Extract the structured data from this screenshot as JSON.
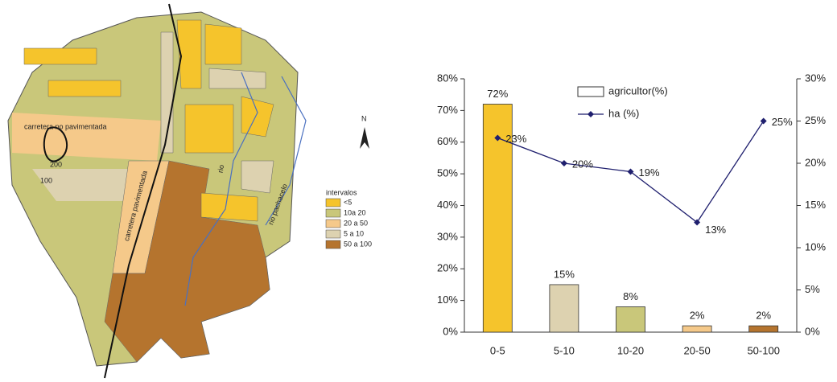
{
  "map": {
    "north": "N",
    "legend_title": "intervalos",
    "legend": [
      {
        "label": "<5",
        "color": "#f5c42c"
      },
      {
        "label": "10a 20",
        "color": "#c9c77a"
      },
      {
        "label": "20 a 50",
        "color": "#f5c98a"
      },
      {
        "label": "5 a 10",
        "color": "#ddd2b0"
      },
      {
        "label": "50 a 100",
        "color": "#b5742e"
      }
    ],
    "labels": [
      "carretera no pavimentada",
      "carretera pavimentada",
      "200",
      "100",
      "rio",
      "rio pachacelo"
    ]
  },
  "chart_data": {
    "type": "bar",
    "categories": [
      "0-5",
      "5-10",
      "10-20",
      "20-50",
      "50-100"
    ],
    "series": [
      {
        "name": "agricultor(%)",
        "values": [
          72,
          15,
          8,
          2,
          2
        ],
        "value_labels": [
          "72%",
          "15%",
          "8%",
          "2%",
          "2%"
        ],
        "colors": [
          "#f5c42c",
          "#ddd2b0",
          "#c9c77a",
          "#f5c98a",
          "#b5742e"
        ]
      },
      {
        "name": "ha (%)",
        "axis": "y2",
        "color": "#1f1f6e",
        "values": [
          23,
          20,
          19,
          13,
          25
        ],
        "value_labels": [
          "23%",
          "20%",
          "19%",
          "13%",
          "25%"
        ]
      }
    ],
    "ylim": [
      0,
      80
    ],
    "yticks": [
      {
        "value": 0,
        "label": "0%"
      },
      {
        "value": 10,
        "label": "10%"
      },
      {
        "value": 20,
        "label": "20%"
      },
      {
        "value": 30,
        "label": "30%"
      },
      {
        "value": 40,
        "label": "40%"
      },
      {
        "value": 50,
        "label": "50%"
      },
      {
        "value": 60,
        "label": "60%"
      },
      {
        "value": 70,
        "label": "70%"
      },
      {
        "value": 80,
        "label": "80%"
      }
    ],
    "y2lim": [
      0,
      30
    ],
    "y2ticks": [
      {
        "value": 0,
        "label": "0%"
      },
      {
        "value": 5,
        "label": "5%"
      },
      {
        "value": 10,
        "label": "10%"
      },
      {
        "value": 15,
        "label": "15%"
      },
      {
        "value": 20,
        "label": "20%"
      },
      {
        "value": 25,
        "label": "25%"
      },
      {
        "value": 30,
        "label": "30%"
      }
    ],
    "legend_position": "top"
  }
}
